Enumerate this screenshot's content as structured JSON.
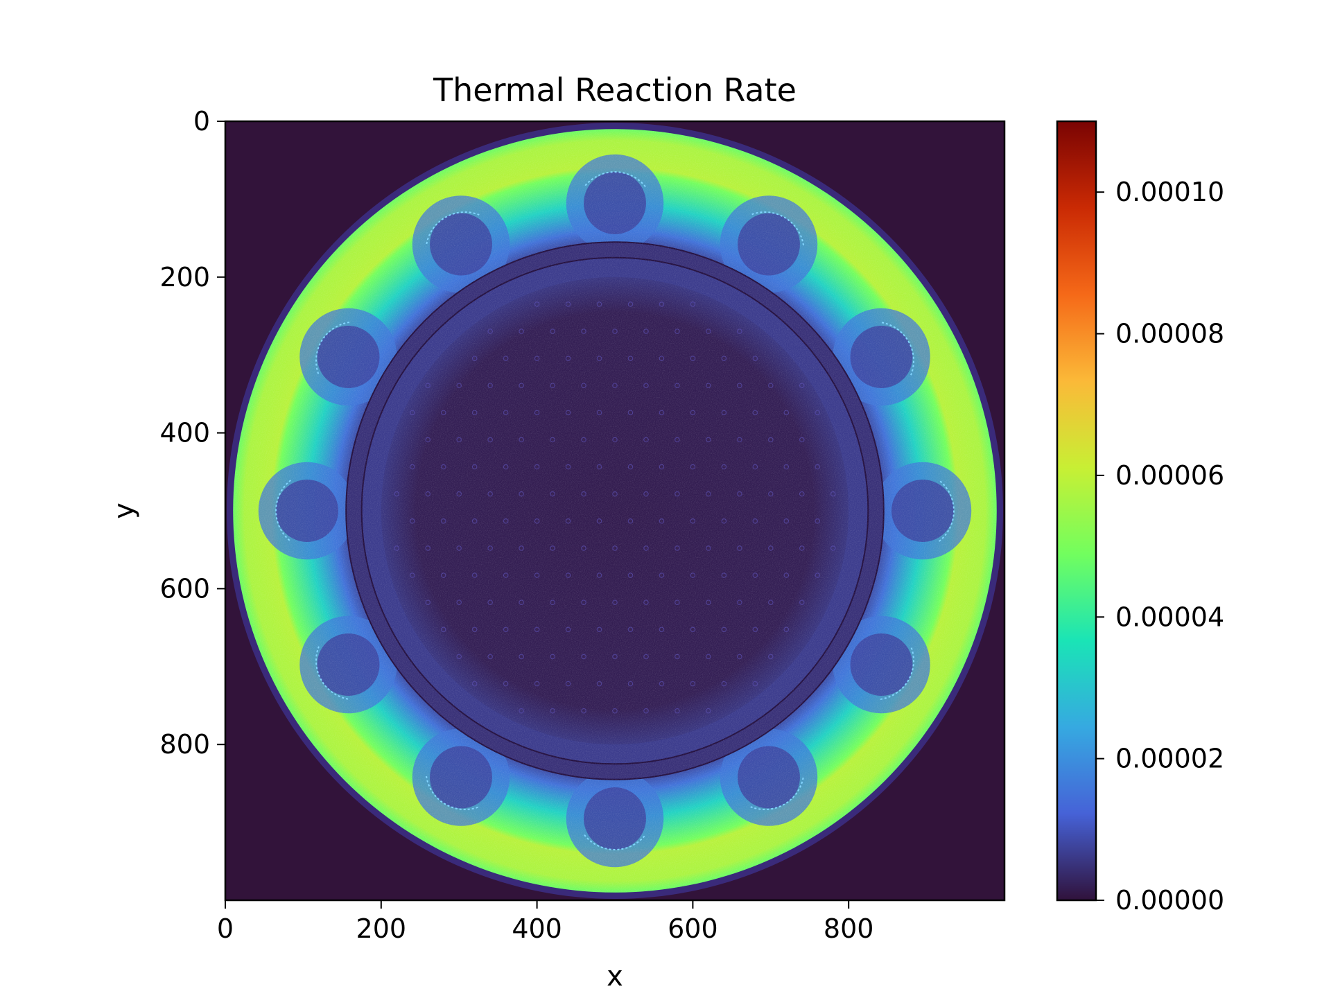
{
  "chart_data": {
    "type": "heatmap",
    "title": "Thermal Reaction Rate",
    "xlabel": "x",
    "ylabel": "y",
    "xlim": [
      0,
      1000
    ],
    "ylim": [
      1000,
      0
    ],
    "x_ticks": [
      0,
      200,
      400,
      600,
      800
    ],
    "x_tick_labels": [
      "0",
      "200",
      "400",
      "600",
      "800"
    ],
    "y_ticks": [
      0,
      200,
      400,
      600,
      800
    ],
    "y_tick_labels": [
      "0",
      "200",
      "400",
      "600",
      "800"
    ],
    "colormap": "turbo",
    "colorbar": {
      "range": [
        0,
        0.00011
      ],
      "ticks": [
        0,
        2e-05,
        4e-05,
        6e-05,
        8e-05,
        0.0001
      ],
      "tick_labels": [
        "0.00000",
        "0.00002",
        "0.00004",
        "0.00006",
        "0.00008",
        "0.00010"
      ]
    },
    "field": {
      "center": [
        500,
        500
      ],
      "vessel_outer_radius": 500,
      "reflector_outer_radius": 490,
      "reflector_inner_radius": 335,
      "barrel_radii": [
        325,
        345
      ],
      "core_radius": 300,
      "reflector_peak_value": 6e-05,
      "core_value": 4e-06,
      "background_value": 0.0,
      "control_pockets": {
        "count": 12,
        "center_radius": 395,
        "arc_radius": 50,
        "first_angle_deg": 90,
        "local_value": 8e-06
      }
    }
  },
  "colors": {
    "background": "#32133a",
    "turbo_stops": [
      "#30123b",
      "#4662d7",
      "#36a9e1",
      "#1ae4b6",
      "#72fe5e",
      "#c8ef34",
      "#fbb938",
      "#f56918",
      "#ca2a04",
      "#7a0403"
    ]
  }
}
